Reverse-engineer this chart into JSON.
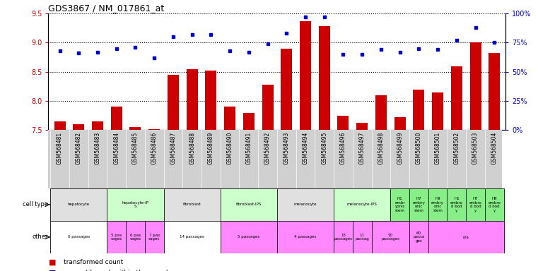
{
  "title": "GDS3867 / NM_017861_at",
  "samples": [
    "GSM568481",
    "GSM568482",
    "GSM568483",
    "GSM568484",
    "GSM568485",
    "GSM568486",
    "GSM568487",
    "GSM568488",
    "GSM568489",
    "GSM568490",
    "GSM568491",
    "GSM568492",
    "GSM568493",
    "GSM568494",
    "GSM568495",
    "GSM568496",
    "GSM568497",
    "GSM568498",
    "GSM568499",
    "GSM568500",
    "GSM568501",
    "GSM568502",
    "GSM568503",
    "GSM568504"
  ],
  "bar_values": [
    7.65,
    7.6,
    7.65,
    7.9,
    7.55,
    7.52,
    8.45,
    8.55,
    8.52,
    7.9,
    7.8,
    8.28,
    8.9,
    9.37,
    9.28,
    7.75,
    7.62,
    8.1,
    7.72,
    8.2,
    8.15,
    8.6,
    9.0,
    8.82
  ],
  "dot_values": [
    68,
    66,
    67,
    70,
    71,
    62,
    80,
    82,
    82,
    68,
    67,
    74,
    83,
    97,
    97,
    65,
    65,
    69,
    67,
    70,
    69,
    77,
    88,
    75
  ],
  "ylim_left": [
    7.5,
    9.5
  ],
  "ylim_right": [
    0,
    100
  ],
  "bar_color": "#cc0000",
  "dot_color": "#0000cc",
  "grid_levels": [
    7.5,
    8.0,
    8.5,
    9.0,
    9.5
  ],
  "right_ticks": [
    0,
    25,
    50,
    75,
    100
  ],
  "right_tick_labels": [
    "0%",
    "25%",
    "50%",
    "75%",
    "100%"
  ],
  "cell_type_groups": [
    {
      "label": "hepatocyte",
      "start": 0,
      "end": 2,
      "color": "#e0e0e0"
    },
    {
      "label": "hepatocyte-iP\nS",
      "start": 3,
      "end": 5,
      "color": "#ccffcc"
    },
    {
      "label": "fibroblast",
      "start": 6,
      "end": 8,
      "color": "#e0e0e0"
    },
    {
      "label": "fibroblast-IPS",
      "start": 9,
      "end": 11,
      "color": "#ccffcc"
    },
    {
      "label": "melanocyte",
      "start": 12,
      "end": 14,
      "color": "#e0e0e0"
    },
    {
      "label": "melanocyte-IPS",
      "start": 15,
      "end": 17,
      "color": "#ccffcc"
    },
    {
      "label": "H1\nembr\nyonic\nstem",
      "start": 18,
      "end": 18,
      "color": "#88ee88"
    },
    {
      "label": "H7\nembry\nonic\nstem",
      "start": 19,
      "end": 19,
      "color": "#88ee88"
    },
    {
      "label": "H9\nembry\nonic\nstem",
      "start": 20,
      "end": 20,
      "color": "#88ee88"
    },
    {
      "label": "H1\nembro\nd bod\ny",
      "start": 21,
      "end": 21,
      "color": "#88ee88"
    },
    {
      "label": "H7\nembro\nd bod\ny",
      "start": 22,
      "end": 22,
      "color": "#88ee88"
    },
    {
      "label": "H9\nembro\nd bod\ny",
      "start": 23,
      "end": 23,
      "color": "#88ee88"
    }
  ],
  "other_groups": [
    {
      "label": "0 passages",
      "start": 0,
      "end": 2,
      "color": "#ffffff"
    },
    {
      "label": "5 pas\nsages",
      "start": 3,
      "end": 3,
      "color": "#ff88ff"
    },
    {
      "label": "6 pas\nsages",
      "start": 4,
      "end": 4,
      "color": "#ff88ff"
    },
    {
      "label": "7 pas\nsages",
      "start": 5,
      "end": 5,
      "color": "#ff88ff"
    },
    {
      "label": "14 passages",
      "start": 6,
      "end": 8,
      "color": "#ffffff"
    },
    {
      "label": "5 passages",
      "start": 9,
      "end": 11,
      "color": "#ff88ff"
    },
    {
      "label": "4 passages",
      "start": 12,
      "end": 14,
      "color": "#ff88ff"
    },
    {
      "label": "15\npassages",
      "start": 15,
      "end": 15,
      "color": "#ff88ff"
    },
    {
      "label": "11\npassag",
      "start": 16,
      "end": 16,
      "color": "#ff88ff"
    },
    {
      "label": "50\npassages",
      "start": 17,
      "end": 18,
      "color": "#ff88ff"
    },
    {
      "label": "60\npassa\nges",
      "start": 19,
      "end": 19,
      "color": "#ff88ff"
    },
    {
      "label": "n/a",
      "start": 20,
      "end": 23,
      "color": "#ff88ff"
    }
  ],
  "left_axis_color": "#cc0000",
  "right_axis_color": "#0000cc",
  "tick_label_bg": "#d0d0d0"
}
